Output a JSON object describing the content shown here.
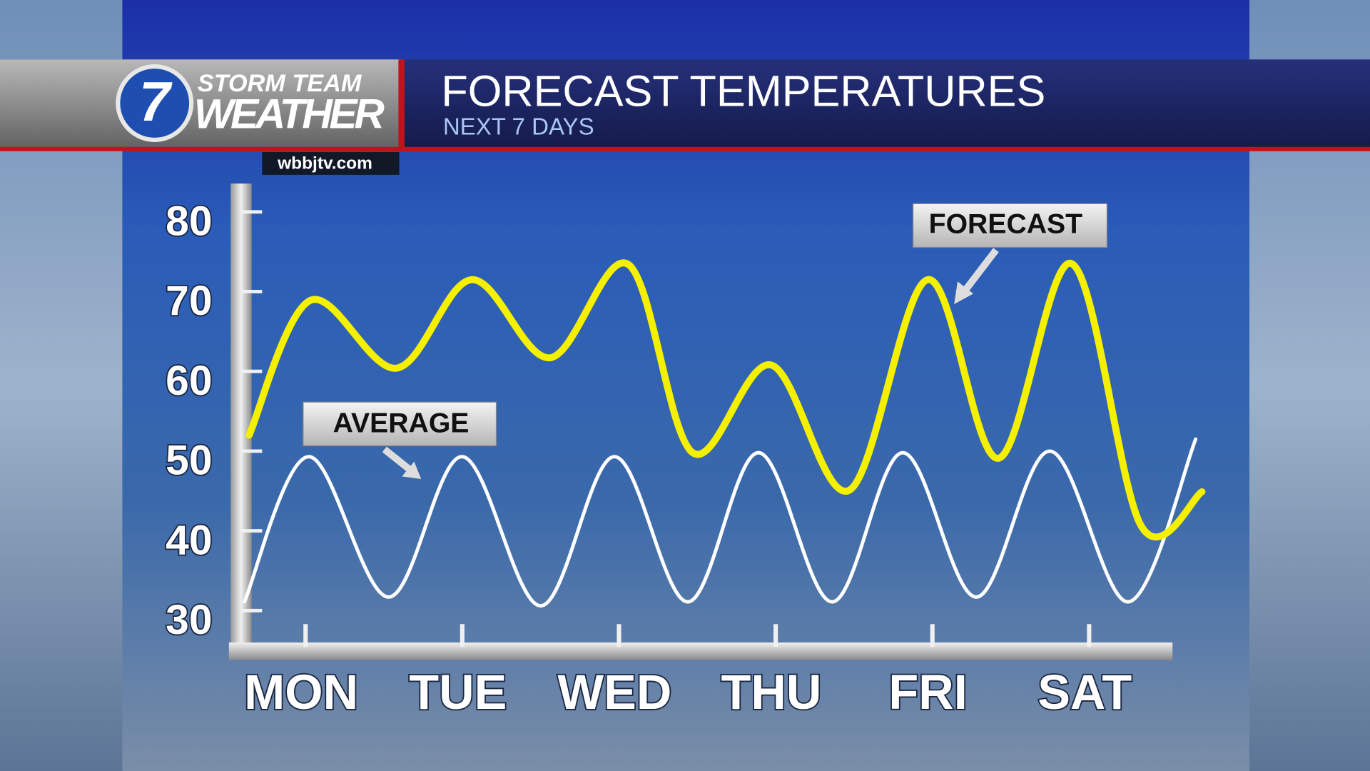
{
  "logo": {
    "number": "7",
    "line1": "STORM TEAM",
    "line2": "WEATHER",
    "website": "wbbjtv.com"
  },
  "chart_data": {
    "type": "line",
    "title": "FORECAST TEMPERATURES",
    "subtitle": "NEXT 7 DAYS",
    "xlim": [
      -0.4,
      5.8
    ],
    "xticks": [
      {
        "value": 0,
        "label": "MON"
      },
      {
        "value": 1,
        "label": "TUE"
      },
      {
        "value": 2,
        "label": "WED"
      },
      {
        "value": 3,
        "label": "THU"
      },
      {
        "value": 4,
        "label": "FRI"
      },
      {
        "value": 5,
        "label": "SAT"
      }
    ],
    "ylim": [
      26,
      83
    ],
    "yticks": [
      30,
      40,
      50,
      60,
      70,
      80
    ],
    "series": [
      {
        "name": "FORECAST",
        "color": "#f5f000",
        "x": [
          -0.36,
          0.03,
          0.58,
          1.06,
          1.56,
          2.06,
          2.47,
          2.97,
          3.47,
          3.97,
          4.42,
          4.89,
          5.33,
          5.72
        ],
        "values": [
          52.0,
          68.9,
          60.4,
          71.5,
          61.7,
          73.4,
          49.8,
          60.8,
          45.1,
          71.5,
          49.1,
          73.5,
          40.7,
          44.9
        ]
      },
      {
        "name": "AVERAGE",
        "color": "#ffffff",
        "x": [
          -0.39,
          0.02,
          0.53,
          1.0,
          1.5,
          1.97,
          2.44,
          2.89,
          3.36,
          3.81,
          4.28,
          4.75,
          5.25,
          5.68
        ],
        "values": [
          31.1,
          49.3,
          31.7,
          49.3,
          30.6,
          49.3,
          31.1,
          49.8,
          31.1,
          49.8,
          31.7,
          50.0,
          31.1,
          51.5
        ]
      }
    ]
  }
}
